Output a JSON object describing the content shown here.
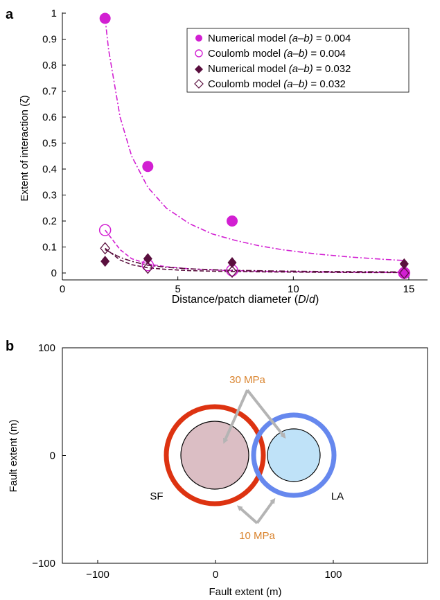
{
  "panel_a": {
    "label": "a",
    "xlabel_main": "Distance/patch diameter (",
    "xlabel_D": "D",
    "xlabel_slash": "/",
    "xlabel_d": "d",
    "xlabel_close": ")",
    "ylabel": "Extent of interaction (ζ)",
    "legend": [
      {
        "name": "Numerical model",
        "ab": "(a–b)",
        "value": " = 0.004"
      },
      {
        "name": "Coulomb model",
        "ab": "(a–b)",
        "value": " = 0.004"
      },
      {
        "name": "Numerical model",
        "ab": "(a–b)",
        "value": " = 0.032"
      },
      {
        "name": "Coulomb model",
        "ab": "(a–b)",
        "value": " = 0.032"
      }
    ]
  },
  "panel_b": {
    "label": "b",
    "xlabel": "Fault extent (m)",
    "ylabel": "Fault extent (m)",
    "label_sf": "SF",
    "label_la": "LA",
    "stress_top": "30 MPa",
    "stress_bottom": "10 MPa"
  },
  "colors": {
    "magenta": "#d21fd2",
    "maroon": "#5a0f3e",
    "red_ring": "#dd3311",
    "blue_ring": "#6688ee",
    "pink_fill": "#dbbec4",
    "blue_fill": "#bfe2f8",
    "arrow_gray": "#b4b4b4",
    "stress_text": "#d9822b"
  },
  "chart_data": [
    {
      "type": "scatter",
      "xlabel": "Distance/patch diameter (D/d)",
      "ylabel": "Extent of interaction (ζ)",
      "xlim": [
        0,
        15
      ],
      "ylim": [
        0,
        1
      ],
      "xticks": [
        0,
        5,
        10,
        15
      ],
      "yticks": [
        0,
        0.1,
        0.2,
        0.3,
        0.4,
        0.5,
        0.6,
        0.7,
        0.8,
        0.9,
        1
      ],
      "legend_position": "top-right",
      "series": [
        {
          "name": "Numerical model (a–b) = 0.004",
          "marker": "filled-circle",
          "color": "#d21fd2",
          "x": [
            1.85,
            3.7,
            7.35,
            14.8
          ],
          "y": [
            0.98,
            0.41,
            0.2,
            0.0
          ],
          "fit": {
            "style": "dash-dot",
            "x": [
              1.85,
              2,
              2.5,
              3,
              3.7,
              4.5,
              5.5,
              6.5,
              7.5,
              8.5,
              9.5,
              11,
              12.5,
              14,
              14.8
            ],
            "y": [
              0.98,
              0.86,
              0.6,
              0.45,
              0.33,
              0.25,
              0.19,
              0.15,
              0.125,
              0.105,
              0.09,
              0.073,
              0.061,
              0.052,
              0.048
            ]
          }
        },
        {
          "name": "Coulomb model (a–b) = 0.004",
          "marker": "open-circle",
          "color": "#d21fd2",
          "x": [
            1.85,
            3.7,
            7.35,
            14.8
          ],
          "y": [
            0.165,
            0.03,
            0.01,
            0.0
          ],
          "fit": {
            "style": "dashed",
            "x": [
              1.85,
              2.5,
              3,
              3.7,
              4.5,
              5.5,
              7,
              9,
              11,
              13,
              14.8
            ],
            "y": [
              0.165,
              0.09,
              0.055,
              0.035,
              0.024,
              0.016,
              0.01,
              0.006,
              0.004,
              0.003,
              0.002
            ]
          }
        },
        {
          "name": "Numerical model (a–b) = 0.032",
          "marker": "filled-diamond",
          "color": "#5a0f3e",
          "x": [
            1.85,
            3.7,
            7.35,
            14.8
          ],
          "y": [
            0.045,
            0.055,
            0.04,
            0.035
          ],
          "fit": {
            "style": "dash-dot",
            "x": [
              1.85,
              2.5,
              3,
              3.7,
              4.5,
              5.5,
              7,
              9,
              11,
              13,
              14.8
            ],
            "y": [
              0.09,
              0.06,
              0.045,
              0.03,
              0.022,
              0.016,
              0.011,
              0.008,
              0.006,
              0.005,
              0.004
            ]
          }
        },
        {
          "name": "Coulomb model (a–b) = 0.032",
          "marker": "open-diamond",
          "color": "#5a0f3e",
          "x": [
            1.85,
            3.7,
            7.35,
            14.8
          ],
          "y": [
            0.095,
            0.02,
            0.005,
            0.0
          ],
          "fit": {
            "style": "dashed",
            "x": [
              1.85,
              2.5,
              3,
              3.7,
              4.5,
              5.5,
              7,
              9,
              11,
              13,
              14.8
            ],
            "y": [
              0.095,
              0.05,
              0.032,
              0.02,
              0.014,
              0.009,
              0.006,
              0.004,
              0.003,
              0.002,
              0.0015
            ]
          }
        }
      ]
    },
    {
      "type": "diagram",
      "xlabel": "Fault extent (m)",
      "ylabel": "Fault extent (m)",
      "xlim": [
        -130,
        180
      ],
      "ylim": [
        -100,
        100
      ],
      "xticks": [
        -100,
        0,
        100
      ],
      "yticks": [
        -100,
        0,
        100
      ],
      "patches": [
        {
          "name": "SF",
          "center": [
            0,
            0
          ],
          "inner_radius": 29,
          "outer_radius": 42
        },
        {
          "name": "LA",
          "center": [
            67,
            0
          ],
          "inner_radius": 23,
          "outer_radius": 35
        }
      ]
    }
  ]
}
